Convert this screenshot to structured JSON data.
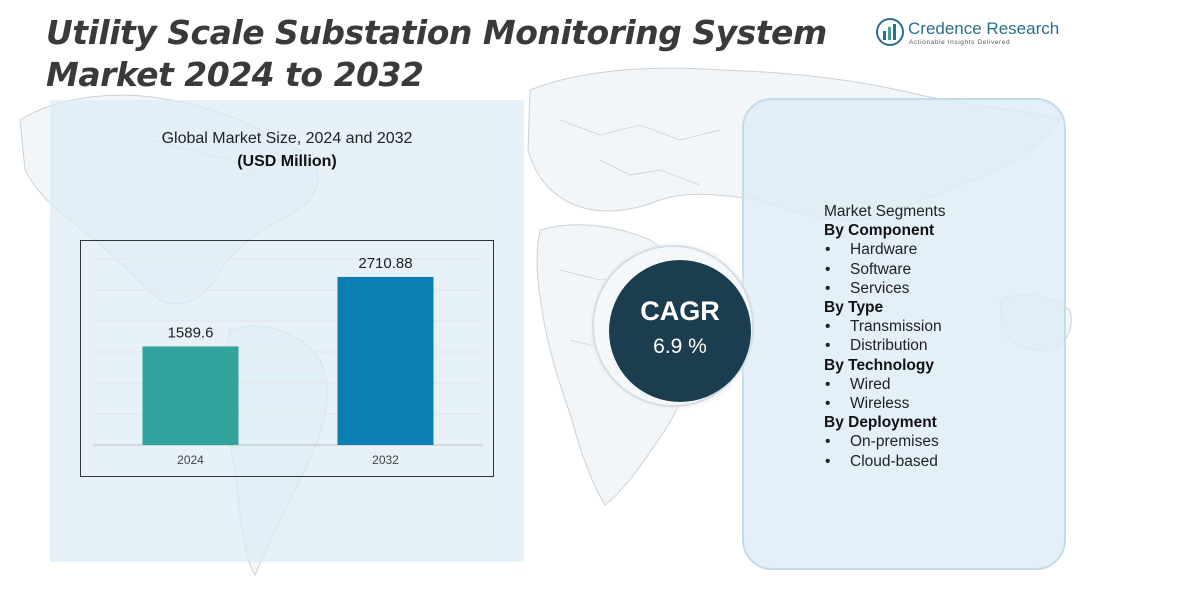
{
  "title": {
    "line1": "Utility Scale Substation Monitoring System",
    "line2": "Market 2024 to 2032"
  },
  "logo": {
    "name": "Credence Research",
    "tagline": "Actionable Insights Delivered"
  },
  "chart_heading": "Global Market Size,  2024 and 2032",
  "chart_unit": "(USD Million)",
  "chart_data": {
    "type": "bar",
    "categories": [
      "2024",
      "2032"
    ],
    "values": [
      1589.6,
      2710.88
    ],
    "value_labels": [
      "1589.6",
      "2710.88"
    ],
    "colors": [
      "#33a39d",
      "#0b7fb3"
    ],
    "ylim": [
      0,
      3000
    ],
    "grid": true
  },
  "cagr": {
    "label": "CAGR",
    "value": "6.9 %"
  },
  "segments": {
    "heading": "Market Segments",
    "groups": [
      {
        "title": "By Component",
        "items": [
          "Hardware",
          "Software",
          "Services"
        ]
      },
      {
        "title": "By Type",
        "items": [
          "Transmission",
          "Distribution"
        ]
      },
      {
        "title": "By Technology",
        "items": [
          "Wired",
          "Wireless"
        ]
      },
      {
        "title": "By Deployment",
        "items": [
          "On-premises",
          "Cloud-based"
        ]
      }
    ]
  }
}
